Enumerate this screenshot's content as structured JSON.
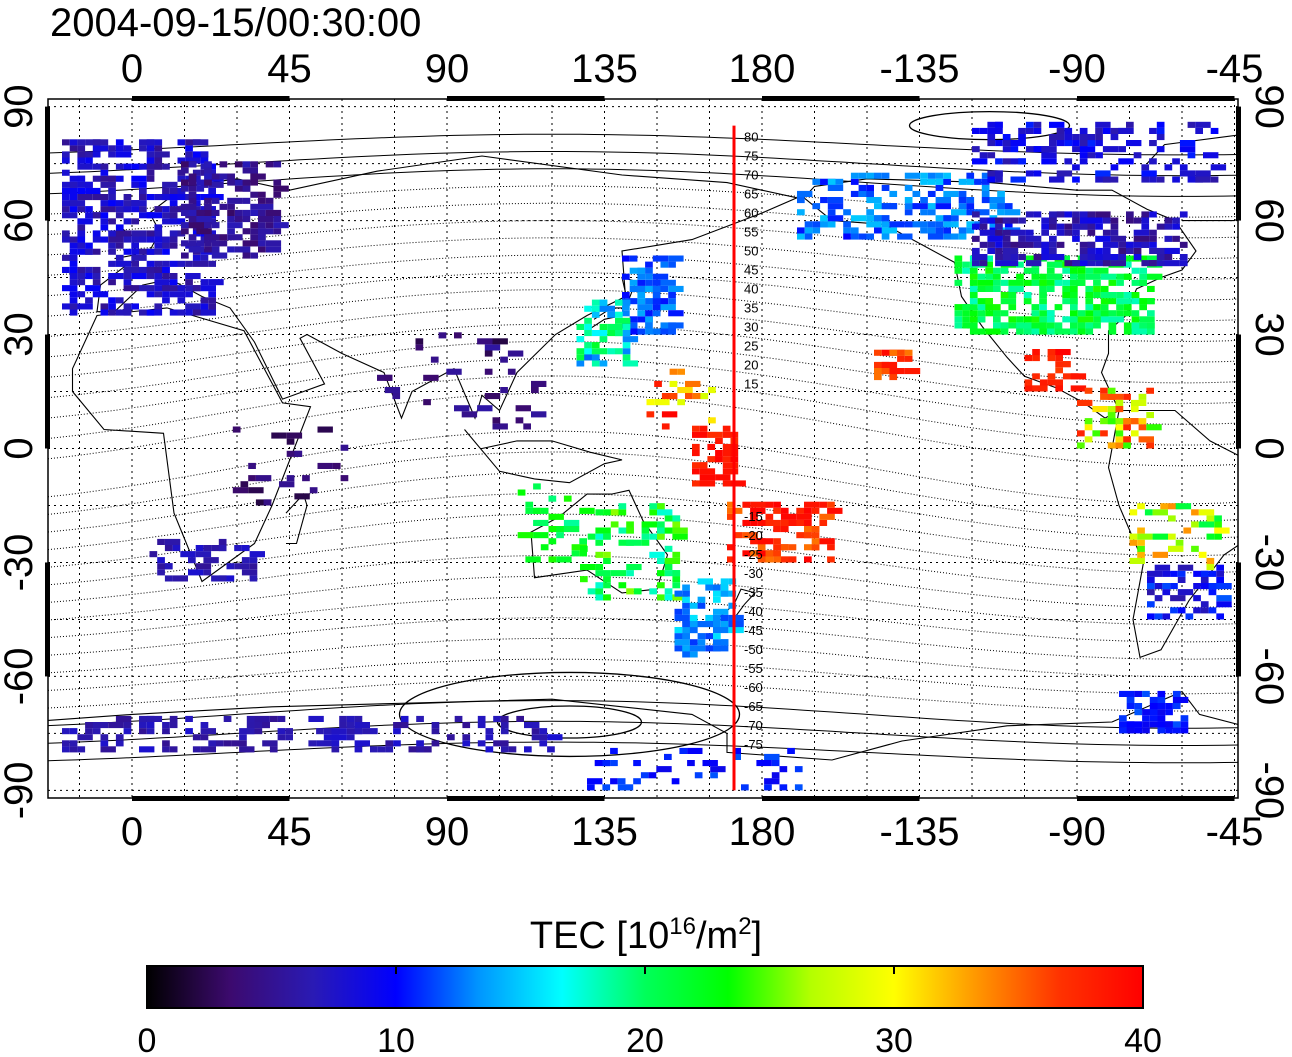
{
  "timestamp": "2004-09-15/00:30:00",
  "colorbar": {
    "title_prefix": "TEC  [10",
    "title_exp1": "16",
    "title_mid": "/m",
    "title_exp2": "2",
    "title_suffix": "]",
    "min": 0,
    "max": 40,
    "ticks": [
      "0",
      "10",
      "20",
      "30",
      "40"
    ],
    "colormap": [
      "#000000",
      "#3c0a6e",
      "#2a1ab4",
      "#0000ff",
      "#0096ff",
      "#00ffff",
      "#00ff5a",
      "#00ff00",
      "#b4ff00",
      "#ffff00",
      "#ff9600",
      "#ff3200",
      "#ff0000"
    ]
  },
  "axes": {
    "top_ticks": [
      "0",
      "45",
      "90",
      "135",
      "180",
      "-135",
      "-90",
      "-45"
    ],
    "bottom_ticks": [
      "0",
      "45",
      "90",
      "135",
      "180",
      "-135",
      "-90",
      "-45"
    ],
    "left_ticks": [
      "90",
      "60",
      "30",
      "0",
      "-30",
      "-60",
      "-90"
    ],
    "right_ticks": [
      "90",
      "60",
      "30",
      "0",
      "-30",
      "-60",
      "-90"
    ],
    "lon_range": [
      -24,
      316
    ],
    "lat_range": [
      -92,
      92
    ]
  },
  "meridian_line": {
    "longitude": 172,
    "color": "#ff0000"
  },
  "contour_labels_north": [
    {
      "lat": 80,
      "text": "80"
    },
    {
      "lat": 75,
      "text": "75"
    },
    {
      "lat": 70,
      "text": "70"
    },
    {
      "lat": 65,
      "text": "65"
    },
    {
      "lat": 60,
      "text": "60"
    },
    {
      "lat": 55,
      "text": "55"
    },
    {
      "lat": 50,
      "text": "50"
    },
    {
      "lat": 45,
      "text": "45"
    },
    {
      "lat": 40,
      "text": "40"
    },
    {
      "lat": 35,
      "text": "35"
    },
    {
      "lat": 30,
      "text": "30"
    },
    {
      "lat": 25,
      "text": "25"
    },
    {
      "lat": 20,
      "text": "20"
    },
    {
      "lat": 15,
      "text": "15"
    }
  ],
  "contour_labels_south": [
    {
      "lat": -15,
      "text": "-15"
    },
    {
      "lat": -20,
      "text": "-20"
    },
    {
      "lat": -25,
      "text": "-25"
    },
    {
      "lat": -30,
      "text": "-30"
    },
    {
      "lat": -35,
      "text": "-35"
    },
    {
      "lat": -40,
      "text": "-40"
    },
    {
      "lat": -45,
      "text": "-45"
    },
    {
      "lat": -50,
      "text": "-50"
    },
    {
      "lat": -55,
      "text": "-55"
    },
    {
      "lat": -60,
      "text": "-60"
    },
    {
      "lat": -65,
      "text": "-65"
    },
    {
      "lat": -70,
      "text": "-70"
    },
    {
      "lat": -75,
      "text": "-75"
    }
  ],
  "tec_regions": [
    {
      "lon0": -20,
      "lon1": 22,
      "lat0": 35,
      "lat1": 80,
      "v": [
        5,
        10
      ],
      "d": 0.55
    },
    {
      "lon0": 14,
      "lon1": 42,
      "lat0": 50,
      "lat1": 75,
      "v": [
        3,
        7
      ],
      "d": 0.55
    },
    {
      "lon0": 140,
      "lon1": 155,
      "lat0": 30,
      "lat1": 50,
      "v": [
        10,
        14
      ],
      "d": 0.6
    },
    {
      "lon0": 127,
      "lon1": 142,
      "lat0": 20,
      "lat1": 38,
      "v": [
        12,
        22
      ],
      "d": 0.45
    },
    {
      "lon0": 147,
      "lon1": 165,
      "lat0": 5,
      "lat1": 20,
      "v": [
        28,
        40
      ],
      "d": 0.2
    },
    {
      "lon0": 160,
      "lon1": 172,
      "lat0": -10,
      "lat1": 5,
      "v": [
        37,
        40
      ],
      "d": 0.45
    },
    {
      "lon0": 170,
      "lon1": 200,
      "lat0": -30,
      "lat1": -15,
      "v": [
        34,
        40
      ],
      "d": 0.5
    },
    {
      "lon0": 212,
      "lon1": 222,
      "lat0": 18,
      "lat1": 25,
      "v": [
        34,
        40
      ],
      "d": 0.7
    },
    {
      "lon0": 108,
      "lon1": 128,
      "lat0": -30,
      "lat1": -10,
      "v": [
        18,
        24
      ],
      "d": 0.25
    },
    {
      "lon0": 128,
      "lon1": 155,
      "lat0": -40,
      "lat1": -15,
      "v": [
        17,
        26
      ],
      "d": 0.3
    },
    {
      "lon0": 155,
      "lon1": 172,
      "lat0": -55,
      "lat1": -35,
      "v": [
        11,
        16
      ],
      "d": 0.55
    },
    {
      "lon0": 190,
      "lon1": 250,
      "lat0": 55,
      "lat1": 72,
      "v": [
        10,
        15
      ],
      "d": 0.45
    },
    {
      "lon0": 235,
      "lon1": 290,
      "lat0": 30,
      "lat1": 50,
      "v": [
        18,
        24
      ],
      "d": 0.65
    },
    {
      "lon0": 240,
      "lon1": 300,
      "lat0": 48,
      "lat1": 62,
      "v": [
        4,
        9
      ],
      "d": 0.55
    },
    {
      "lon0": 240,
      "lon1": 310,
      "lat0": 70,
      "lat1": 85,
      "v": [
        6,
        11
      ],
      "d": 0.35
    },
    {
      "lon0": 255,
      "lon1": 270,
      "lat0": 15,
      "lat1": 25,
      "v": [
        36,
        40
      ],
      "d": 0.55
    },
    {
      "lon0": 270,
      "lon1": 290,
      "lat0": 0,
      "lat1": 15,
      "v": [
        24,
        38
      ],
      "d": 0.3
    },
    {
      "lon0": 285,
      "lon1": 310,
      "lat0": -32,
      "lat1": -15,
      "v": [
        20,
        34
      ],
      "d": 0.25
    },
    {
      "lon0": 290,
      "lon1": 310,
      "lat0": -45,
      "lat1": -32,
      "v": [
        6,
        12
      ],
      "d": 0.5
    },
    {
      "lon0": 282,
      "lon1": 300,
      "lat0": -75,
      "lat1": -65,
      "v": [
        9,
        12
      ],
      "d": 0.6
    },
    {
      "lon0": -20,
      "lon1": 120,
      "lat0": -80,
      "lat1": -72,
      "v": [
        5,
        8
      ],
      "d": 0.3
    },
    {
      "lon0": 130,
      "lon1": 190,
      "lat0": -90,
      "lat1": -80,
      "v": [
        9,
        12
      ],
      "d": 0.25
    },
    {
      "lon0": 70,
      "lon1": 115,
      "lat0": 5,
      "lat1": 30,
      "v": [
        2,
        6
      ],
      "d": 0.08
    },
    {
      "lon0": 5,
      "lon1": 35,
      "lat0": -35,
      "lat1": -25,
      "v": [
        5,
        8
      ],
      "d": 0.4
    },
    {
      "lon0": 20,
      "lon1": 60,
      "lat0": -15,
      "lat1": 5,
      "v": [
        2,
        5
      ],
      "d": 0.08
    }
  ]
}
